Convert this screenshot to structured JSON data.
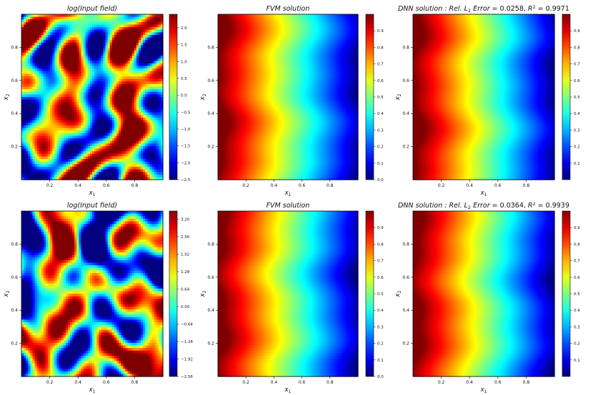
{
  "chart_data": [
    {
      "type": "heatmap",
      "kind": "input",
      "title": "log(Input field)",
      "title_style": "italic",
      "xlabel": "x",
      "xlabel_sub": "1",
      "ylabel": "x",
      "ylabel_sub": "2",
      "xlim": [
        0,
        1
      ],
      "ylim": [
        0,
        1
      ],
      "xticks": [
        0.2,
        0.4,
        0.6,
        0.8
      ],
      "yticks": [
        0.2,
        0.4,
        0.6,
        0.8
      ],
      "colormap": "jet",
      "colorbar": {
        "range": [
          -2.5,
          2.4
        ],
        "ticks": [
          "2.0",
          "1.5",
          "1.0",
          "0.5",
          "0.0",
          "−0.5",
          "−1.0",
          "−1.5",
          "−2.0",
          "−2.5"
        ],
        "tick_values": [
          2.0,
          1.5,
          1.0,
          0.5,
          0.0,
          -0.5,
          -1.0,
          -1.5,
          -2.0,
          -2.5
        ]
      }
    },
    {
      "type": "heatmap",
      "kind": "solution",
      "title": "FVM solution",
      "title_style": "italic",
      "xlabel": "x",
      "xlabel_sub": "1",
      "ylabel": "x",
      "ylabel_sub": "2",
      "xlim": [
        0,
        1
      ],
      "ylim": [
        0,
        1
      ],
      "xticks": [
        0.2,
        0.4,
        0.6,
        0.8
      ],
      "yticks": [
        0.2,
        0.4,
        0.6,
        0.8
      ],
      "colormap": "jet",
      "colorbar": {
        "range": [
          0.0,
          1.0
        ],
        "ticks": [
          "0.9",
          "0.8",
          "0.7",
          "0.6",
          "0.5",
          "0.4",
          "0.3",
          "0.2",
          "0.1",
          "0.0"
        ],
        "tick_values": [
          0.9,
          0.8,
          0.7,
          0.6,
          0.5,
          0.4,
          0.3,
          0.2,
          0.1,
          0.0
        ]
      }
    },
    {
      "type": "heatmap",
      "kind": "solution",
      "title_parts": {
        "label": "DNN solution :  Rel. ",
        "l": "L",
        "l_sub": "2",
        "err_label": " Error",
        "err": " = 0.0258, ",
        "r": "R",
        "r_sup": "2",
        "r_val": " = 0.9971"
      },
      "xlabel": "x",
      "xlabel_sub": "1",
      "ylabel": "x",
      "ylabel_sub": "2",
      "xlim": [
        0,
        1
      ],
      "ylim": [
        0,
        1
      ],
      "xticks": [
        0.2,
        0.4,
        0.6,
        0.8
      ],
      "yticks": [
        0.2,
        0.4,
        0.6,
        0.8
      ],
      "colormap": "jet",
      "colorbar": {
        "range": [
          0.0,
          1.0
        ],
        "ticks": [
          "0.9",
          "0.8",
          "0.7",
          "0.6",
          "0.5",
          "0.4",
          "0.3",
          "0.2",
          "0.1"
        ],
        "tick_values": [
          0.9,
          0.8,
          0.7,
          0.6,
          0.5,
          0.4,
          0.3,
          0.2,
          0.1
        ]
      }
    },
    {
      "type": "heatmap",
      "kind": "input",
      "title": "log(Input field)",
      "title_style": "italic",
      "xlabel": "x",
      "xlabel_sub": "1",
      "ylabel": "x",
      "ylabel_sub": "2",
      "xlim": [
        0,
        1
      ],
      "ylim": [
        0,
        1
      ],
      "xticks": [
        0.2,
        0.4,
        0.6,
        0.8
      ],
      "yticks": [
        0.2,
        0.4,
        0.6,
        0.8
      ],
      "colormap": "jet",
      "colorbar": {
        "range": [
          -2.56,
          3.5
        ],
        "ticks": [
          "3.20",
          "2.56",
          "1.92",
          "1.28",
          "0.64",
          "0.00",
          "−0.64",
          "−1.28",
          "−1.92",
          "−2.56"
        ],
        "tick_values": [
          3.2,
          2.56,
          1.92,
          1.28,
          0.64,
          0.0,
          -0.64,
          -1.28,
          -1.92,
          -2.56
        ]
      }
    },
    {
      "type": "heatmap",
      "kind": "solution",
      "title": "FVM solution",
      "title_style": "italic",
      "xlabel": "x",
      "xlabel_sub": "1",
      "ylabel": "x",
      "ylabel_sub": "2",
      "xlim": [
        0,
        1
      ],
      "ylim": [
        0,
        1
      ],
      "xticks": [
        0.2,
        0.4,
        0.6,
        0.8
      ],
      "yticks": [
        0.2,
        0.4,
        0.6,
        0.8
      ],
      "colormap": "jet",
      "colorbar": {
        "range": [
          0.0,
          1.0
        ],
        "ticks": [
          "0.9",
          "0.8",
          "0.7",
          "0.6",
          "0.5",
          "0.4",
          "0.3",
          "0.2",
          "0.1",
          "0.0"
        ],
        "tick_values": [
          0.9,
          0.8,
          0.7,
          0.6,
          0.5,
          0.4,
          0.3,
          0.2,
          0.1,
          0.0
        ]
      }
    },
    {
      "type": "heatmap",
      "kind": "solution",
      "title_parts": {
        "label": "DNN solution :  Rel. ",
        "l": "L",
        "l_sub": "2",
        "err_label": " Error",
        "err": " = 0.0364, ",
        "r": "R",
        "r_sup": "2",
        "r_val": " = 0.9939"
      },
      "xlabel": "x",
      "xlabel_sub": "1",
      "ylabel": "x",
      "ylabel_sub": "2",
      "xlim": [
        0,
        1
      ],
      "ylim": [
        0,
        1
      ],
      "xticks": [
        0.2,
        0.4,
        0.6,
        0.8
      ],
      "yticks": [
        0.2,
        0.4,
        0.6,
        0.8
      ],
      "colormap": "jet",
      "colorbar": {
        "range": [
          0.0,
          1.0
        ],
        "ticks": [
          "0.9",
          "0.8",
          "0.7",
          "0.6",
          "0.5",
          "0.4",
          "0.3",
          "0.2",
          "0.1"
        ],
        "tick_values": [
          0.9,
          0.8,
          0.7,
          0.6,
          0.5,
          0.4,
          0.3,
          0.2,
          0.1
        ]
      }
    }
  ]
}
